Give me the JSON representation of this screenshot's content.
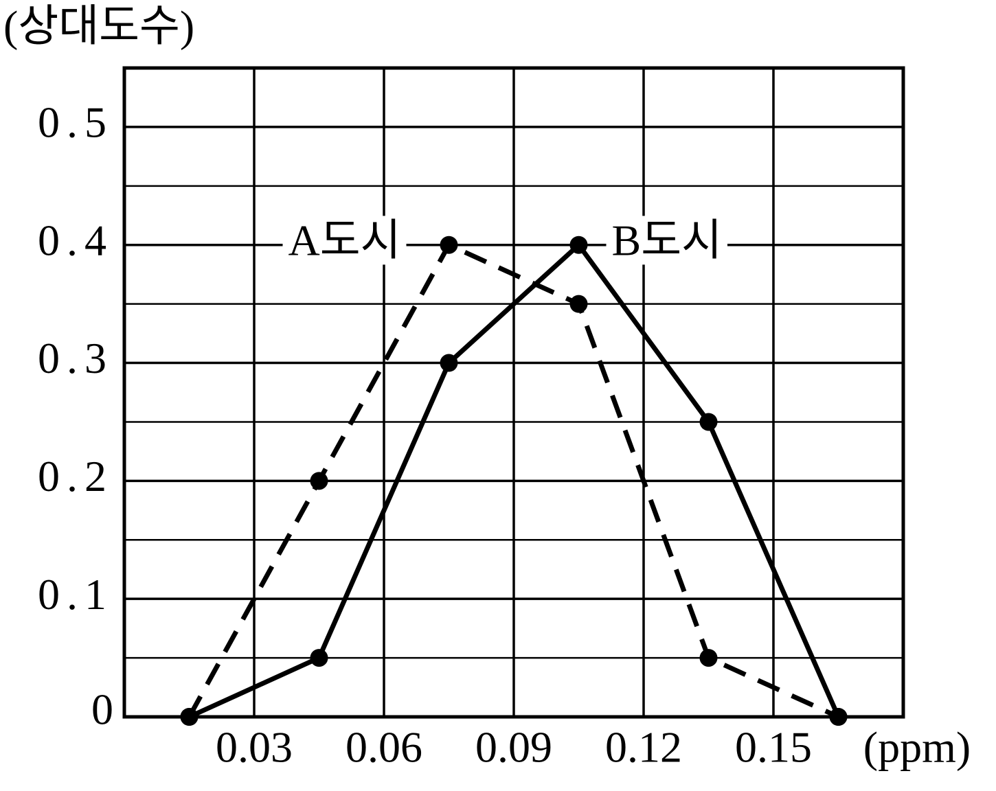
{
  "chart_data": {
    "type": "line",
    "y_label": "(상대도수)",
    "x_unit": "(ppm)",
    "zero_label": "0",
    "x": [
      0.015,
      0.045,
      0.075,
      0.105,
      0.135,
      0.165
    ],
    "series": [
      {
        "name": "A도시",
        "color": "#000000",
        "line_style": "dashed",
        "values": [
          0,
          0.2,
          0.4,
          0.35,
          0.05,
          0
        ]
      },
      {
        "name": "B도시",
        "color": "#000000",
        "line_style": "solid",
        "values": [
          0,
          0.05,
          0.3,
          0.4,
          0.25,
          0
        ]
      }
    ],
    "xlim": [
      0,
      0.18
    ],
    "ylim": [
      0,
      0.55
    ],
    "xticks": [
      0.03,
      0.06,
      0.09,
      0.12,
      0.15
    ],
    "yticks": [
      0.1,
      0.2,
      0.3,
      0.4,
      0.5
    ],
    "yminorticks": [
      0.05,
      0.15,
      0.25,
      0.35,
      0.45
    ],
    "grid": true
  }
}
